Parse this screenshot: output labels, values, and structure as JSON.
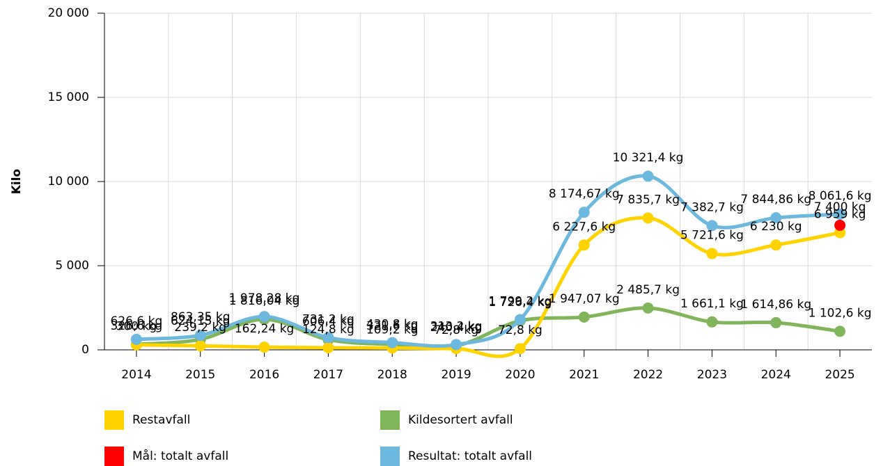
{
  "chart_data": {
    "type": "line",
    "ylabel": "Kilo",
    "categories": [
      "2014",
      "2015",
      "2016",
      "2017",
      "2018",
      "2019",
      "2020",
      "2021",
      "2022",
      "2023",
      "2024",
      "2025"
    ],
    "ylim": [
      0,
      20000
    ],
    "yticks": [
      0,
      {
        "value": 5000,
        "label": "5 000"
      },
      {
        "value": 10000,
        "label": "10 000"
      },
      {
        "value": 15000,
        "label": "15 000"
      },
      {
        "value": 20000,
        "label": "20 000"
      }
    ],
    "grid": true,
    "series": [
      {
        "name": "Restavfall",
        "color": "#ffd200",
        "values": [
          300,
          239.2,
          162.24,
          124.8,
          109.2,
          72.8,
          72.8,
          6227.6,
          7835.7,
          5721.6,
          6230,
          6959
        ],
        "value_labels": [
          "300 kg",
          "239,2 kg",
          "162,24 kg",
          "124,8 kg",
          "109,2 kg",
          "72,8 kg",
          "72,8 kg",
          "6 227,6 kg",
          "7 835,7 kg",
          "5 721,6 kg",
          "6 230 kg",
          "6 959 kg"
        ]
      },
      {
        "name": "Kildesortert avfall",
        "color": "#80b55b",
        "values": [
          326.6,
          624.15,
          1816.04,
          606.4,
          321.6,
          240.4,
          1726.4,
          1947.07,
          2485.7,
          1661.1,
          1614.86,
          1102.6
        ],
        "value_labels": [
          "326,6 kg",
          "624,15 kg",
          "1 816,04 kg",
          "606,4 kg",
          "321,6 kg",
          "240,4 kg",
          "1 726,4 kg",
          "1 947,07 kg",
          "2 485,7 kg",
          "1 661,1 kg",
          "1 614,86 kg",
          "1 102,6 kg"
        ]
      },
      {
        "name": "Mål: totalt avfall",
        "color": "#ff0000",
        "values": [
          null,
          null,
          null,
          null,
          null,
          null,
          null,
          null,
          null,
          null,
          null,
          7400
        ],
        "value_labels": [
          null,
          null,
          null,
          null,
          null,
          null,
          null,
          null,
          null,
          null,
          null,
          "7 400 kg"
        ]
      },
      {
        "name": "Resultat: totalt avfall",
        "color": "#6cb8de",
        "values": [
          626.6,
          863.35,
          1978.28,
          731.2,
          430.8,
          313.2,
          1799.2,
          8174.67,
          10321.4,
          7382.7,
          7844.86,
          8061.6
        ],
        "value_labels": [
          "626,6 kg",
          "863,35 kg",
          "1 978,28 kg",
          "731,2 kg",
          "430,8 kg",
          "313,2 kg",
          "1 799,2 kg",
          "8 174,67 kg",
          "10 321,4 kg",
          "7 382,7 kg",
          "7 844,86 kg",
          "8 061,6 kg"
        ]
      }
    ]
  }
}
